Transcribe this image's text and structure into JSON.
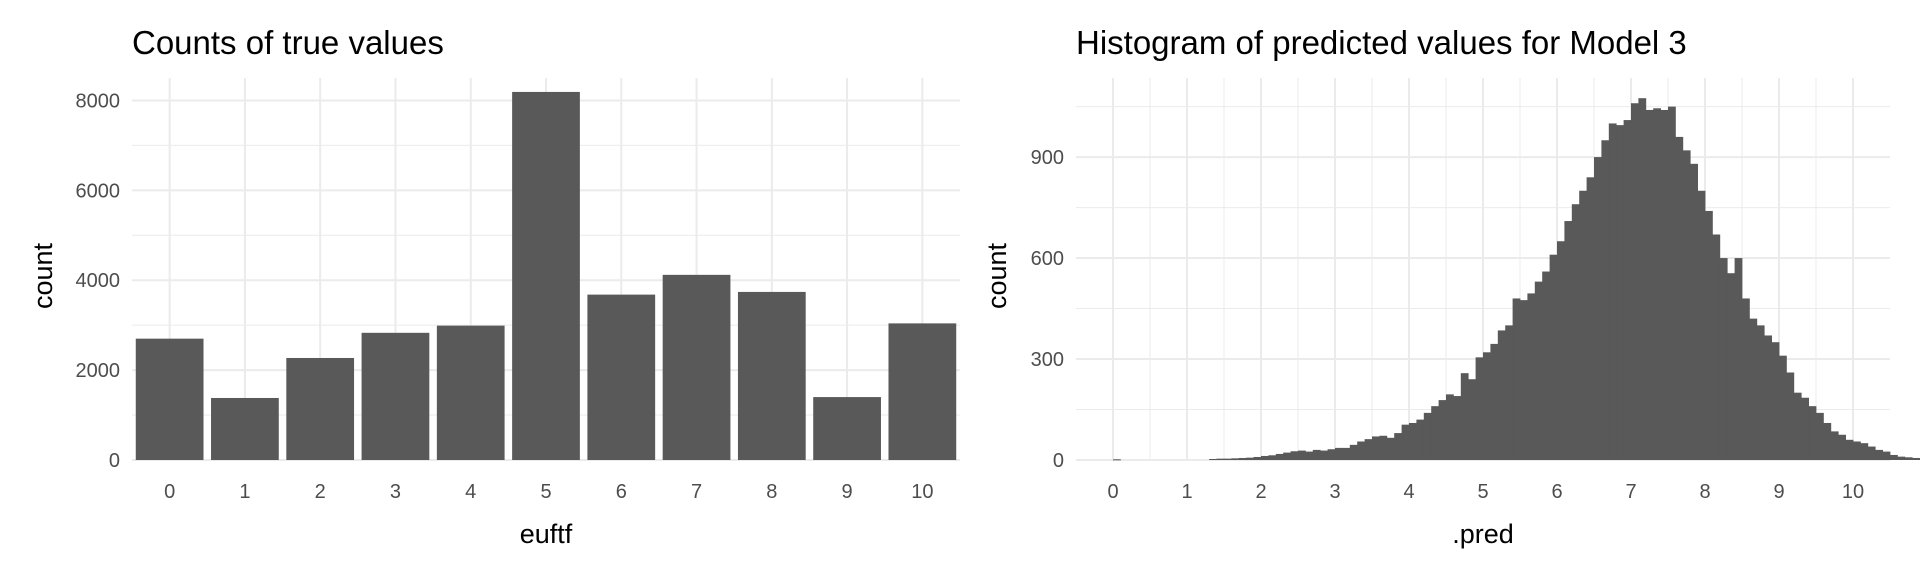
{
  "chart_data": [
    {
      "type": "bar",
      "title": "Counts of true values",
      "xlabel": "euftf",
      "ylabel": "count",
      "categories": [
        "0",
        "1",
        "2",
        "3",
        "4",
        "5",
        "6",
        "7",
        "8",
        "9",
        "10"
      ],
      "values": [
        2700,
        1380,
        2270,
        2830,
        2990,
        8190,
        3680,
        4120,
        3740,
        1400,
        3040
      ],
      "ylim": [
        0,
        8500
      ],
      "y_ticks": [
        0,
        2000,
        4000,
        6000,
        8000
      ],
      "grid": true,
      "bar_color": "#595959"
    },
    {
      "type": "bar",
      "subtype": "histogram",
      "title": "Histogram of predicted values for Model 3",
      "xlabel": ".pred",
      "ylabel": "count",
      "bin_width": 0.1,
      "x_start": 0.0,
      "xlim": [
        -0.5,
        10.5
      ],
      "ylim": [
        0,
        1135
      ],
      "x_ticks": [
        0,
        1,
        2,
        3,
        4,
        5,
        6,
        7,
        8,
        9,
        10
      ],
      "y_ticks": [
        0,
        300,
        600,
        900
      ],
      "values": [
        2,
        0,
        0,
        0,
        0,
        0,
        0,
        0,
        0,
        0,
        0,
        0,
        0,
        3,
        4,
        4,
        5,
        6,
        7,
        9,
        12,
        14,
        18,
        22,
        26,
        28,
        25,
        30,
        28,
        32,
        36,
        36,
        45,
        55,
        62,
        70,
        72,
        66,
        80,
        105,
        110,
        120,
        140,
        160,
        178,
        195,
        190,
        258,
        240,
        305,
        320,
        345,
        385,
        400,
        480,
        475,
        495,
        530,
        560,
        610,
        650,
        710,
        760,
        800,
        840,
        900,
        950,
        1000,
        995,
        1010,
        1060,
        1075,
        1040,
        1045,
        1040,
        1050,
        960,
        920,
        880,
        800,
        740,
        670,
        600,
        555,
        600,
        480,
        420,
        400,
        370,
        350,
        310,
        260,
        200,
        185,
        160,
        140,
        110,
        85,
        75,
        60,
        55,
        50,
        40,
        30,
        25,
        15,
        10,
        8,
        6,
        4,
        3,
        2,
        3,
        2,
        1,
        0,
        2,
        1,
        2,
        1,
        2
      ],
      "grid": true,
      "bar_color": "#595959"
    }
  ]
}
